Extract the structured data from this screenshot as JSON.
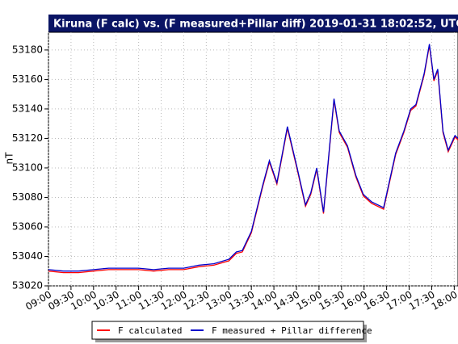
{
  "chart_data": {
    "type": "line",
    "title": "Kiruna (F calc) vs. (F measured+Pillar diff) 2019-01-31 18:02:52, UTC",
    "y_label": "nT",
    "x": [
      "09:00",
      "09:20",
      "09:40",
      "10:00",
      "10:20",
      "10:40",
      "11:00",
      "11:20",
      "11:40",
      "12:00",
      "12:20",
      "12:40",
      "13:00",
      "13:10",
      "13:18",
      "13:30",
      "13:45",
      "13:54",
      "14:04",
      "14:18",
      "14:31",
      "14:42",
      "14:49",
      "14:57",
      "15:06",
      "15:20",
      "15:27",
      "15:38",
      "15:49",
      "15:59",
      "16:10",
      "16:26",
      "16:42",
      "16:53",
      "17:02",
      "17:09",
      "17:20",
      "17:27",
      "17:33",
      "17:38",
      "17:45",
      "17:52",
      "18:01",
      "18:05"
    ],
    "series": [
      {
        "name": "F calculated",
        "color": "#ff0000",
        "values": [
          53030,
          53029,
          53029,
          53030,
          53031,
          53031,
          53031,
          53030,
          53031,
          53031,
          53033,
          53034,
          53037,
          53042,
          53043,
          53056,
          53087,
          53104,
          53089,
          53127,
          53099,
          53074,
          53082,
          53099,
          53069,
          53146,
          53124,
          53114,
          53094,
          53081,
          53076,
          53072,
          53109,
          53124,
          53139,
          53142,
          53163,
          53183,
          53159,
          53166,
          53124,
          53111,
          53121,
          53119
        ]
      },
      {
        "name": "F measured + Pillar difference",
        "color": "#0000cc",
        "values": [
          53031,
          53030,
          53030,
          53031,
          53032,
          53032,
          53032,
          53031,
          53032,
          53032,
          53034,
          53035,
          53038,
          53043,
          53044,
          53057,
          53088,
          53105,
          53090,
          53128,
          53100,
          53075,
          53083,
          53100,
          53070,
          53147,
          53125,
          53115,
          53095,
          53082,
          53077,
          53073,
          53110,
          53125,
          53140,
          53143,
          53164,
          53184,
          53160,
          53167,
          53125,
          53112,
          53122,
          53120
        ]
      }
    ],
    "xlim": [
      "09:00",
      "18:05"
    ],
    "xticks": [
      "09:00",
      "09:30",
      "10:00",
      "10:30",
      "11:00",
      "11:30",
      "12:00",
      "12:30",
      "13:00",
      "13:30",
      "14:00",
      "14:30",
      "15:00",
      "15:30",
      "16:00",
      "16:30",
      "17:00",
      "17:30",
      "18:00"
    ],
    "ylim": [
      53020,
      53192
    ],
    "yticks": [
      53020,
      53040,
      53060,
      53080,
      53100,
      53120,
      53140,
      53160,
      53180
    ],
    "grid": true
  }
}
